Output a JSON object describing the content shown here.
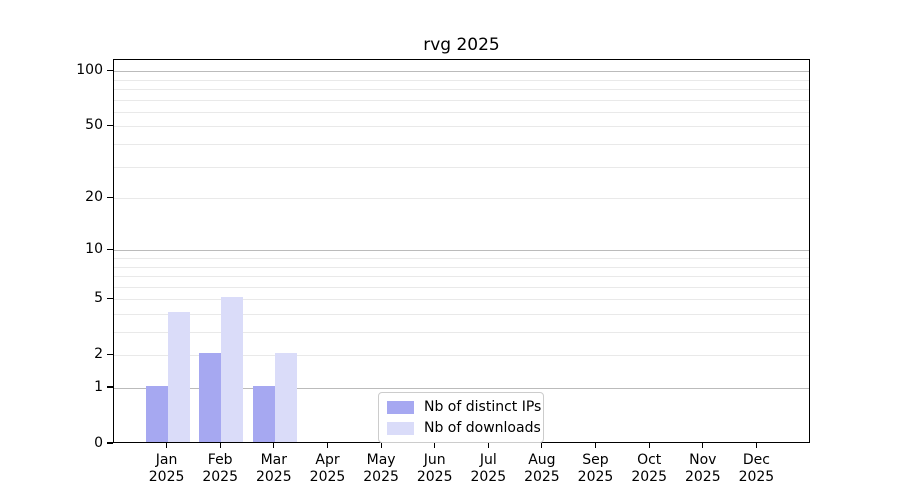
{
  "chart_data": {
    "type": "bar",
    "title": "rvg 2025",
    "categories": [
      "Jan",
      "Feb",
      "Mar",
      "Apr",
      "May",
      "Jun",
      "Jul",
      "Aug",
      "Sep",
      "Oct",
      "Nov",
      "Dec"
    ],
    "x_year_label": "2025",
    "series": [
      {
        "name": "Nb of distinct IPs",
        "color": "#a6a8f1",
        "values": [
          1,
          2,
          1,
          0,
          0,
          0,
          0,
          0,
          0,
          0,
          0,
          0
        ]
      },
      {
        "name": "Nb of downloads",
        "color": "#dadcf9",
        "values": [
          4,
          5,
          2,
          0,
          0,
          0,
          0,
          0,
          0,
          0,
          0,
          0
        ]
      }
    ],
    "xlabel": "",
    "ylabel": "",
    "yscale": "log1p",
    "ylim": [
      0,
      115
    ],
    "yticks": [
      0,
      1,
      2,
      5,
      10,
      20,
      50,
      100
    ],
    "yticks_major_grid": [
      1,
      10,
      100
    ],
    "yticks_minor_grid": [
      2,
      3,
      4,
      5,
      6,
      7,
      8,
      9,
      20,
      30,
      40,
      50,
      60,
      70,
      80,
      90
    ],
    "grid": true,
    "legend_position": "lower center"
  },
  "colors": {
    "background": "#ffffff",
    "axis": "#000000",
    "grid_major": "#bbbbbb",
    "grid_minor": "#e9e9e9",
    "legend_border": "#cccccc",
    "text": "#000000"
  }
}
